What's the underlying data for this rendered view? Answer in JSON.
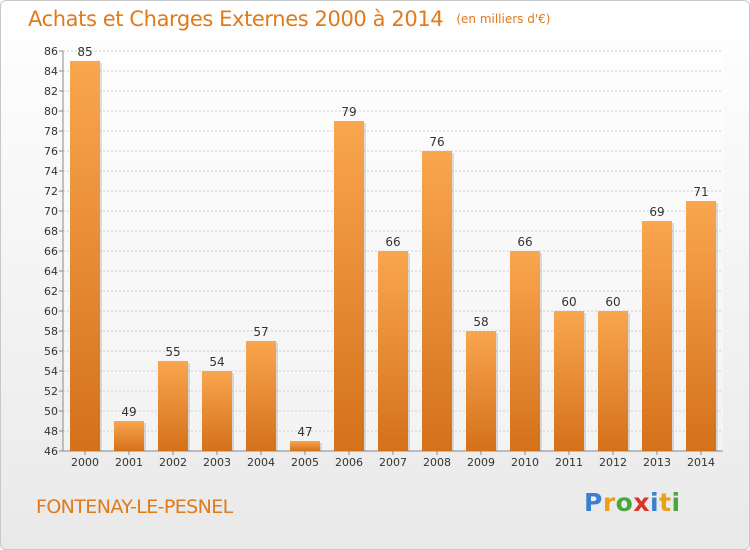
{
  "title": "Achats et Charges Externes 2000 à 2014",
  "subtitle": "(en milliers d'€)",
  "commune": "FONTENAY-LE-PESNEL",
  "logo": {
    "text": "Proxiti",
    "letters": [
      {
        "ch": "P",
        "color": "#3a7fd0"
      },
      {
        "ch": "r",
        "color": "#e8a21a"
      },
      {
        "ch": "o",
        "color": "#4aa83a"
      },
      {
        "ch": "x",
        "color": "#d8342c"
      },
      {
        "ch": "i",
        "color": "#3a7fd0"
      },
      {
        "ch": "t",
        "color": "#e8a21a"
      },
      {
        "ch": "i",
        "color": "#4aa83a"
      }
    ]
  },
  "colors": {
    "bar_light": "#f9a64f",
    "bar_dark": "#d4711a",
    "title": "#e07a1a",
    "grid": "#cfcfcf",
    "axis": "#888888",
    "text": "#333333"
  },
  "chart_data": {
    "type": "bar",
    "categories": [
      "2000",
      "2001",
      "2002",
      "2003",
      "2004",
      "2005",
      "2006",
      "2007",
      "2008",
      "2009",
      "2010",
      "2011",
      "2012",
      "2013",
      "2014"
    ],
    "values": [
      85,
      49,
      55,
      54,
      57,
      47,
      79,
      66,
      76,
      58,
      66,
      60,
      60,
      69,
      71
    ],
    "ylim": [
      46,
      86
    ],
    "yticks": [
      46,
      48,
      50,
      52,
      54,
      56,
      58,
      60,
      62,
      64,
      66,
      68,
      70,
      72,
      74,
      76,
      78,
      80,
      82,
      84,
      86
    ],
    "grid": true,
    "data_labels": true
  }
}
